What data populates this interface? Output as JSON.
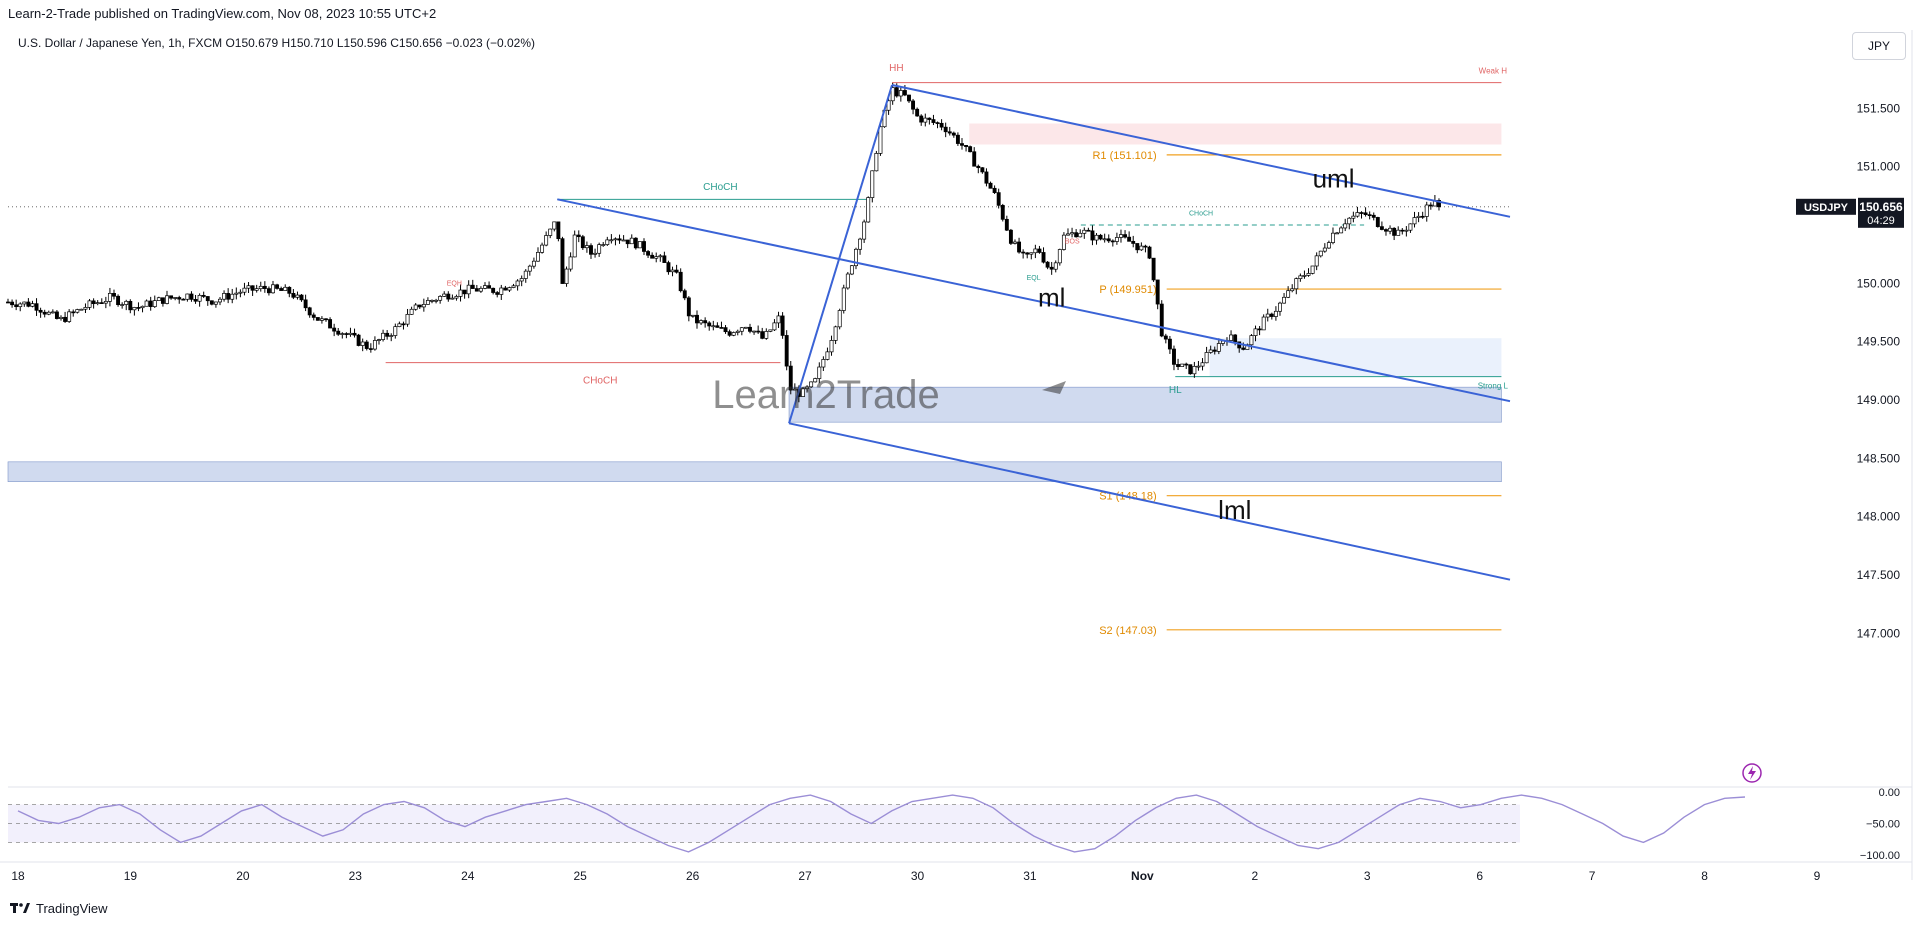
{
  "header": {
    "publisher": "Learn-2-Trade published on TradingView.com, Nov 08, 2023 10:55 UTC+2",
    "symbol_info": "U.S. Dollar / Japanese Yen, 1h, FXCM  O150.679  H150.710  L150.596  C150.656  −0.023 (−0.02%)",
    "currency_button": "JPY"
  },
  "footer": {
    "brand": "TradingView"
  },
  "watermark": "Learn2Trade",
  "colors": {
    "bull": "#000000",
    "bear": "#000000",
    "channel": "#3a63d6",
    "pivot": "#f0a020",
    "choch_red": "#e06464",
    "choch_green": "#2a9d8f",
    "rsi": "#9b8ed6",
    "zone_blue": "#c8d4ec",
    "zone_light": "#e6eefb",
    "zone_red": "#fbe3e5"
  },
  "chart_data": {
    "type": "candlestick",
    "symbol": "USDJPY",
    "timeframe": "1h",
    "ohlc_last": {
      "open": 150.679,
      "high": 150.71,
      "low": 150.596,
      "close": 150.656,
      "change": -0.023,
      "change_pct": -0.02
    },
    "last_price_label": {
      "symbol": "USDJPY",
      "price": "150.656",
      "countdown": "04:29"
    },
    "y_axis": {
      "min": 146.9,
      "max": 152.0,
      "ticks": [
        "151.500",
        "151.000",
        "150.000",
        "149.500",
        "149.000",
        "148.500",
        "148.000",
        "147.500",
        "147.000"
      ],
      "tick_values": [
        151.5,
        151.0,
        150.0,
        149.5,
        149.0,
        148.5,
        148.0,
        147.5,
        147.0
      ]
    },
    "x_axis": {
      "ticks": [
        "18",
        "19",
        "20",
        "23",
        "24",
        "25",
        "26",
        "27",
        "30",
        "31",
        "Nov",
        "2",
        "3",
        "6",
        "7",
        "8",
        "9"
      ]
    },
    "close_path": [
      {
        "x": 0,
        "y": 149.84
      },
      {
        "x": 0.3,
        "y": 149.82
      },
      {
        "x": 0.6,
        "y": 149.68
      },
      {
        "x": 0.9,
        "y": 149.8
      },
      {
        "x": 1.2,
        "y": 149.88
      },
      {
        "x": 1.5,
        "y": 149.79
      },
      {
        "x": 1.8,
        "y": 149.86
      },
      {
        "x": 2.1,
        "y": 149.9
      },
      {
        "x": 2.4,
        "y": 149.85
      },
      {
        "x": 2.7,
        "y": 149.93
      },
      {
        "x": 3.0,
        "y": 149.96
      },
      {
        "x": 3.3,
        "y": 149.92
      },
      {
        "x": 3.6,
        "y": 149.7
      },
      {
        "x": 3.9,
        "y": 149.58
      },
      {
        "x": 4.2,
        "y": 149.45
      },
      {
        "x": 4.5,
        "y": 149.6
      },
      {
        "x": 4.8,
        "y": 149.82
      },
      {
        "x": 5.1,
        "y": 149.9
      },
      {
        "x": 5.4,
        "y": 149.95
      },
      {
        "x": 5.7,
        "y": 149.94
      },
      {
        "x": 6.0,
        "y": 150.05
      },
      {
        "x": 6.2,
        "y": 150.3
      },
      {
        "x": 6.4,
        "y": 150.55
      },
      {
        "x": 6.45,
        "y": 149.95
      },
      {
        "x": 6.6,
        "y": 150.4
      },
      {
        "x": 6.8,
        "y": 150.25
      },
      {
        "x": 7.0,
        "y": 150.42
      },
      {
        "x": 7.3,
        "y": 150.35
      },
      {
        "x": 7.6,
        "y": 150.2
      },
      {
        "x": 7.8,
        "y": 150.05
      },
      {
        "x": 7.95,
        "y": 149.7
      },
      {
        "x": 8.2,
        "y": 149.62
      },
      {
        "x": 8.4,
        "y": 149.58
      },
      {
        "x": 8.6,
        "y": 149.65
      },
      {
        "x": 8.8,
        "y": 149.52
      },
      {
        "x": 9.0,
        "y": 149.72
      },
      {
        "x": 9.1,
        "y": 149.1
      },
      {
        "x": 9.25,
        "y": 149.05
      },
      {
        "x": 9.4,
        "y": 149.15
      },
      {
        "x": 9.6,
        "y": 149.55
      },
      {
        "x": 9.8,
        "y": 150.1
      },
      {
        "x": 10.0,
        "y": 150.6
      },
      {
        "x": 10.15,
        "y": 151.3
      },
      {
        "x": 10.3,
        "y": 151.66
      },
      {
        "x": 10.45,
        "y": 151.6
      },
      {
        "x": 10.6,
        "y": 151.42
      },
      {
        "x": 10.9,
        "y": 151.35
      },
      {
        "x": 11.1,
        "y": 151.2
      },
      {
        "x": 11.3,
        "y": 151.0
      },
      {
        "x": 11.5,
        "y": 150.75
      },
      {
        "x": 11.7,
        "y": 150.35
      },
      {
        "x": 11.85,
        "y": 150.2
      },
      {
        "x": 12.0,
        "y": 150.3
      },
      {
        "x": 12.15,
        "y": 150.1
      },
      {
        "x": 12.3,
        "y": 150.4
      },
      {
        "x": 12.5,
        "y": 150.45
      },
      {
        "x": 12.7,
        "y": 150.38
      },
      {
        "x": 12.9,
        "y": 150.4
      },
      {
        "x": 13.1,
        "y": 150.35
      },
      {
        "x": 13.3,
        "y": 150.25
      },
      {
        "x": 13.45,
        "y": 149.55
      },
      {
        "x": 13.6,
        "y": 149.3
      },
      {
        "x": 13.8,
        "y": 149.25
      },
      {
        "x": 14.0,
        "y": 149.4
      },
      {
        "x": 14.2,
        "y": 149.55
      },
      {
        "x": 14.4,
        "y": 149.45
      },
      {
        "x": 14.6,
        "y": 149.65
      },
      {
        "x": 14.8,
        "y": 149.8
      },
      {
        "x": 15.0,
        "y": 150.0
      },
      {
        "x": 15.2,
        "y": 150.15
      },
      {
        "x": 15.4,
        "y": 150.4
      },
      {
        "x": 15.6,
        "y": 150.55
      },
      {
        "x": 15.8,
        "y": 150.6
      },
      {
        "x": 16.0,
        "y": 150.5
      },
      {
        "x": 16.2,
        "y": 150.42
      },
      {
        "x": 16.4,
        "y": 150.55
      },
      {
        "x": 16.6,
        "y": 150.7
      },
      {
        "x": 16.7,
        "y": 150.656
      }
    ],
    "x_max": 17.5,
    "channel_lines": [
      {
        "name": "uml",
        "label": "uml",
        "from": {
          "x": 10.3,
          "y": 151.7
        },
        "to": {
          "x": 17.5,
          "y": 150.57
        }
      },
      {
        "name": "ml",
        "label": "ml",
        "from": {
          "x": 6.4,
          "y": 150.72
        },
        "to": {
          "x": 17.5,
          "y": 148.99
        }
      },
      {
        "name": "lml",
        "label": "lml",
        "from": {
          "x": 9.1,
          "y": 148.8
        },
        "to": {
          "x": 17.5,
          "y": 147.46
        }
      },
      {
        "name": "handle",
        "label": "",
        "from": {
          "x": 9.1,
          "y": 148.8
        },
        "to": {
          "x": 10.3,
          "y": 151.7
        }
      }
    ],
    "levels": [
      {
        "label": "R1 (151.101)",
        "value": 151.101,
        "from_x": 13.5,
        "color_key": "pivot"
      },
      {
        "label": "P (149.951)",
        "value": 149.951,
        "from_x": 13.5,
        "color_key": "pivot"
      },
      {
        "label": "S1 (148.18)",
        "value": 148.18,
        "from_x": 13.5,
        "color_key": "pivot"
      },
      {
        "label": "S2 (147.03)",
        "value": 147.03,
        "from_x": 13.5,
        "color_key": "pivot"
      }
    ],
    "zones": [
      {
        "name": "supply-zone",
        "from_x": 11.2,
        "to_x": 17.4,
        "y_top": 151.37,
        "y_bottom": 151.19,
        "color_key": "zone_red"
      },
      {
        "name": "light-demand-zone",
        "from_x": 14.0,
        "to_x": 17.4,
        "y_top": 149.53,
        "y_bottom": 149.2,
        "color_key": "zone_light"
      },
      {
        "name": "demand-zone",
        "from_x": 9.1,
        "to_x": 17.4,
        "y_top": 149.11,
        "y_bottom": 148.81,
        "color_key": "zone_blue"
      },
      {
        "name": "support-zone",
        "from_x": 0,
        "to_x": 17.4,
        "y_top": 148.47,
        "y_bottom": 148.3,
        "color_key": "zone_blue"
      }
    ],
    "annotations": [
      {
        "text": "HH",
        "x": 10.35,
        "y": 151.82,
        "color_key": "choch_red"
      },
      {
        "text": "CHoCH",
        "x": 8.3,
        "y": 150.8,
        "color_key": "choch_green"
      },
      {
        "text": "CHoCH",
        "x": 6.9,
        "y": 149.14,
        "color_key": "choch_red"
      },
      {
        "text": "EQH",
        "x": 5.2,
        "y": 149.98,
        "color_key": "choch_red"
      },
      {
        "text": "CHoCH",
        "x": 13.9,
        "y": 150.58,
        "color_key": "choch_green"
      },
      {
        "text": "BOS",
        "x": 12.4,
        "y": 150.34,
        "color_key": "choch_red"
      },
      {
        "text": "EQL",
        "x": 11.95,
        "y": 150.03,
        "color_key": "choch_green"
      },
      {
        "text": "HL",
        "x": 13.6,
        "y": 149.06,
        "color_key": "choch_green"
      },
      {
        "text": "Weak H",
        "x": 17.3,
        "y": 151.8,
        "color_key": "choch_red"
      },
      {
        "text": "Strong L",
        "x": 17.3,
        "y": 149.1,
        "color_key": "choch_green"
      }
    ],
    "structure_lines": [
      {
        "name": "choch-top",
        "from_x": 6.4,
        "to_x": 10.0,
        "y": 150.72,
        "color_key": "choch_green",
        "dashed": false
      },
      {
        "name": "choch-bottom",
        "from_x": 4.4,
        "to_x": 9.0,
        "y": 149.32,
        "color_key": "choch_red",
        "dashed": false
      },
      {
        "name": "hh-line",
        "from_x": 10.3,
        "to_x": 17.4,
        "y": 151.72,
        "color_key": "choch_red",
        "dashed": false
      },
      {
        "name": "choch-right",
        "from_x": 12.5,
        "to_x": 15.8,
        "y": 150.5,
        "color_key": "choch_green",
        "dashed": true
      },
      {
        "name": "strong-low",
        "from_x": 13.6,
        "to_x": 17.4,
        "y": 149.2,
        "color_key": "choch_green",
        "dashed": false
      }
    ],
    "rsi": {
      "ticks": [
        "0.00",
        "−50.00",
        "−100.00"
      ],
      "tick_values": [
        0,
        -50,
        -100
      ],
      "levels": [
        -20,
        -50,
        -80
      ],
      "values": [
        -30,
        -45,
        -50,
        -40,
        -25,
        -20,
        -35,
        -60,
        -80,
        -70,
        -50,
        -30,
        -20,
        -40,
        -55,
        -70,
        -60,
        -35,
        -20,
        -15,
        -25,
        -45,
        -55,
        -40,
        -30,
        -20,
        -15,
        -10,
        -20,
        -35,
        -55,
        -70,
        -85,
        -95,
        -80,
        -60,
        -40,
        -20,
        -10,
        -5,
        -15,
        -35,
        -50,
        -30,
        -15,
        -10,
        -5,
        -10,
        -25,
        -50,
        -70,
        -85,
        -95,
        -90,
        -70,
        -45,
        -25,
        -10,
        -5,
        -15,
        -35,
        -55,
        -70,
        -85,
        -90,
        -80,
        -60,
        -40,
        -20,
        -10,
        -15,
        -25,
        -20,
        -10,
        -5,
        -10,
        -20,
        -35,
        -50,
        -70,
        -80,
        -65,
        -40,
        -20,
        -10,
        -8
      ]
    }
  }
}
